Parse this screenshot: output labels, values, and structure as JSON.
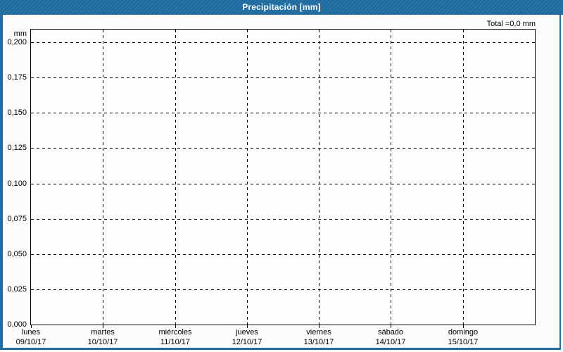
{
  "header": {
    "title": "Precipitación [mm]"
  },
  "colors": {
    "frame_blue": "#1e6da3",
    "title_text": "#ffffff",
    "background": "#fcfcfc",
    "plot_background": "#fefefe",
    "axis": "#000000",
    "grid": "#000000",
    "text": "#000000"
  },
  "chart_data": {
    "type": "bar",
    "title": "Precipitación [mm]",
    "total_label": "Total =0,0 mm",
    "total_value_mm": 0.0,
    "grid_style": "dashed",
    "legend": "none",
    "ylim": [
      0,
      0.21
    ],
    "y_axis": {
      "unit": "mm",
      "ticks": [
        {
          "label": "0,000",
          "value": 0.0
        },
        {
          "label": "0,025",
          "value": 0.025
        },
        {
          "label": "0,050",
          "value": 0.05
        },
        {
          "label": "0,075",
          "value": 0.075
        },
        {
          "label": "0,100",
          "value": 0.1
        },
        {
          "label": "0,125",
          "value": 0.125
        },
        {
          "label": "0,150",
          "value": 0.15
        },
        {
          "label": "0,175",
          "value": 0.175
        },
        {
          "label": "0,200",
          "value": 0.2
        }
      ]
    },
    "x_axis": {
      "categories": [
        {
          "day": "lunes",
          "date": "09/10/17"
        },
        {
          "day": "martes",
          "date": "10/10/17"
        },
        {
          "day": "miércoles",
          "date": "11/10/17"
        },
        {
          "day": "jueves",
          "date": "12/10/17"
        },
        {
          "day": "viernes",
          "date": "13/10/17"
        },
        {
          "day": "sábado",
          "date": "14/10/17"
        },
        {
          "day": "domingo",
          "date": "15/10/17"
        }
      ]
    },
    "series": [
      {
        "name": "Precipitación",
        "values": [
          0,
          0,
          0,
          0,
          0,
          0,
          0
        ]
      }
    ]
  }
}
